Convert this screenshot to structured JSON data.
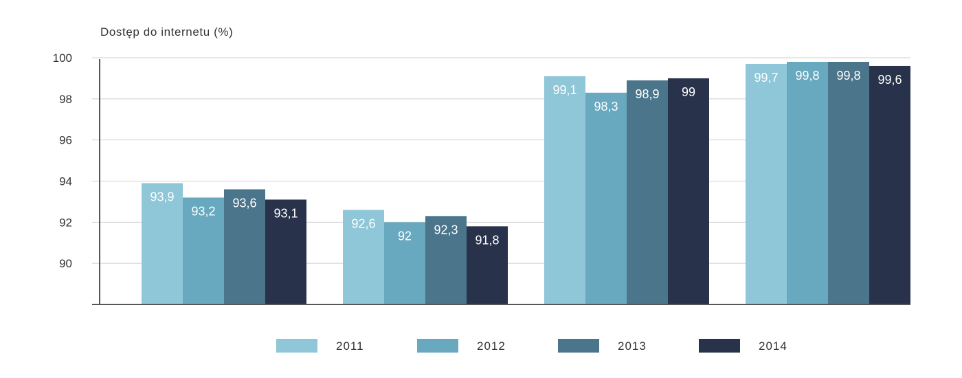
{
  "chart_data": {
    "type": "bar",
    "title": "",
    "ylabel": "Dostęp do internetu (%)",
    "xlabel": "",
    "ylim": [
      88,
      100
    ],
    "yticks": [
      "90",
      "92",
      "94",
      "96",
      "98",
      "100"
    ],
    "grid": true,
    "legend_position": "bottom",
    "categories": [
      "",
      "",
      "",
      ""
    ],
    "series": [
      {
        "name": "2011",
        "color": "#8fc6d8",
        "values": [
          93.9,
          92.6,
          99.1,
          99.7
        ],
        "labels": [
          "93,9",
          "92,6",
          "99,1",
          "99,7"
        ]
      },
      {
        "name": "2012",
        "color": "#68a9c0",
        "values": [
          93.2,
          92.0,
          98.3,
          99.8
        ],
        "labels": [
          "93,2",
          "92",
          "98,3",
          "99,8"
        ]
      },
      {
        "name": "2013",
        "color": "#4b758a",
        "values": [
          93.6,
          92.3,
          98.9,
          99.8
        ],
        "labels": [
          "93,6",
          "92,3",
          "98,9",
          "99,8"
        ]
      },
      {
        "name": "2014",
        "color": "#28334b",
        "values": [
          93.1,
          91.8,
          99.0,
          99.6
        ],
        "labels": [
          "93,1",
          "91,8",
          "99",
          "99,6"
        ]
      }
    ]
  }
}
